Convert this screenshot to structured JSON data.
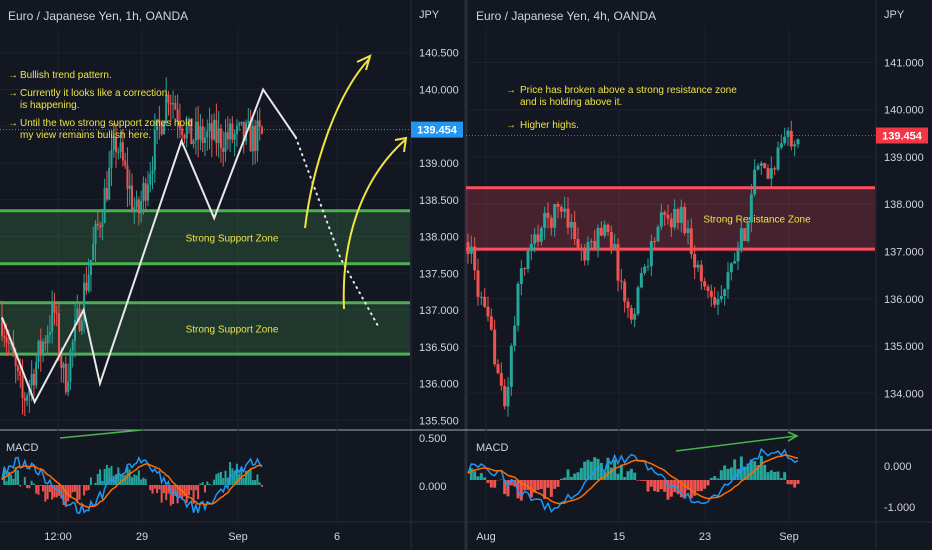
{
  "colors": {
    "background": "#131722",
    "grid": "#1e2230",
    "bull": "#26a69a",
    "bear": "#ef5350",
    "support_zone": "#4caf50",
    "resistance_zone": "#ff4d5e",
    "annotation_arrow": "#f0e442",
    "price_tag_left": "#2196f3",
    "price_tag_right": "#f23645",
    "macd_line": "#2196f3",
    "signal_line": "#ff6d00",
    "divergence_line": "#4caf50"
  },
  "currency_label": "JPY",
  "chart_data": [
    {
      "type": "candlestick",
      "title": "Euro / Japanese Yen, 1h, OANDA",
      "y_unit": "JPY",
      "y_ticks": [
        "140.500",
        "140.000",
        "139.500",
        "139.000",
        "138.500",
        "138.000",
        "137.500",
        "137.000",
        "136.500",
        "136.000",
        "135.500"
      ],
      "ylim": [
        135.45,
        140.85
      ],
      "x_ticks": [
        "12:00",
        "29",
        "Sep",
        "6"
      ],
      "current_price": "139.454",
      "zones": [
        {
          "label": "Strong Support Zone",
          "low": 137.63,
          "high": 138.35
        },
        {
          "label": "Strong Support Zone",
          "low": 136.4,
          "high": 137.1
        }
      ],
      "path_points": [
        [
          0.0,
          136.9
        ],
        [
          0.08,
          135.75
        ],
        [
          0.2,
          137.0
        ],
        [
          0.24,
          136.0
        ],
        [
          0.44,
          139.3
        ],
        [
          0.52,
          138.25
        ],
        [
          0.64,
          140.0
        ],
        [
          0.72,
          139.35
        ]
      ],
      "projection_points": [
        [
          0.72,
          139.35
        ],
        [
          0.83,
          137.7
        ],
        [
          0.92,
          136.8
        ]
      ],
      "notes": [
        "Bullish trend pattern.",
        "Currently it looks like a correction",
        "is happening.",
        "Until the two strong support zones hold",
        "my view remains bullish here."
      ],
      "indicator": {
        "label": "MACD",
        "y_ticks": [
          "0.500",
          "0.000"
        ]
      }
    },
    {
      "type": "candlestick",
      "title": "Euro / Japanese Yen, 4h, OANDA",
      "y_unit": "JPY",
      "y_ticks": [
        "141.000",
        "140.000",
        "139.000",
        "138.000",
        "137.000",
        "136.000",
        "135.000",
        "134.000"
      ],
      "ylim": [
        133.35,
        141.75
      ],
      "x_ticks": [
        "Aug",
        "15",
        "23",
        "Sep"
      ],
      "current_price": "139.454",
      "zones": [
        {
          "label": "Strong Resistance Zone",
          "low": 137.05,
          "high": 138.35
        }
      ],
      "path_points": [
        [
          0.0,
          137.2
        ],
        [
          0.04,
          135.9
        ],
        [
          0.08,
          134.9
        ],
        [
          0.11,
          133.6
        ],
        [
          0.16,
          136.6
        ],
        [
          0.22,
          137.5
        ],
        [
          0.29,
          138.0
        ],
        [
          0.35,
          136.8
        ],
        [
          0.42,
          137.7
        ],
        [
          0.49,
          135.5
        ],
        [
          0.53,
          136.6
        ],
        [
          0.58,
          137.6
        ],
        [
          0.65,
          137.8
        ],
        [
          0.71,
          136.3
        ],
        [
          0.77,
          136.0
        ],
        [
          0.84,
          137.5
        ],
        [
          0.87,
          138.7
        ],
        [
          0.91,
          138.6
        ],
        [
          0.95,
          139.3
        ],
        [
          0.99,
          139.5
        ]
      ],
      "notes": [
        "Price has broken above a strong resistance zone",
        "and is holding above it.",
        "Higher highs."
      ],
      "indicator": {
        "label": "MACD",
        "y_ticks": [
          "0.000",
          "-1.000"
        ]
      }
    }
  ]
}
